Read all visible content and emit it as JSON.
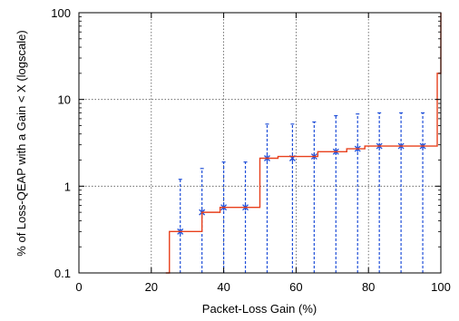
{
  "chart_data": {
    "type": "line",
    "title": "",
    "xlabel": "Packet-Loss Gain (%)",
    "ylabel": "% of Loss-QEAP with a Gain < X   (logscale)",
    "xlim": [
      0,
      100
    ],
    "ylim": [
      0.1,
      100
    ],
    "yscale": "log",
    "grid": true,
    "legend": "none",
    "x_ticks": [
      0,
      20,
      40,
      60,
      80,
      100
    ],
    "x_tick_labels": [
      "0",
      "20",
      "40",
      "60",
      "80",
      "100"
    ],
    "y_ticks": [
      0.1,
      1,
      10,
      100
    ],
    "y_tick_labels": [
      "0.1",
      "1",
      "10",
      "100"
    ],
    "colors": {
      "cdf": "#e8401c",
      "errorbar": "#1f4fd8",
      "grid": "#555555"
    },
    "series": [
      {
        "kind": "step",
        "x": [
          24,
          25,
          32,
          34,
          37,
          39,
          46,
          47,
          50,
          51,
          55,
          62,
          66,
          68,
          74,
          79,
          84,
          98,
          99,
          100
        ],
        "values": [
          0.1,
          0.3,
          0.3,
          0.5,
          0.5,
          0.57,
          0.57,
          0.57,
          2.1,
          2.1,
          2.2,
          2.2,
          2.5,
          2.5,
          2.7,
          2.9,
          2.9,
          2.9,
          20,
          100
        ]
      },
      {
        "kind": "errorbar",
        "x": [
          28,
          34,
          40,
          46,
          52,
          59,
          65,
          71,
          77,
          83,
          89,
          95
        ],
        "values": [
          0.3,
          0.5,
          0.57,
          0.57,
          2.1,
          2.1,
          2.2,
          2.5,
          2.7,
          2.9,
          2.9,
          2.9
        ],
        "upper": [
          1.2,
          1.6,
          1.9,
          1.9,
          5.2,
          5.2,
          5.5,
          6.5,
          6.8,
          7.0,
          7.0,
          7.0
        ],
        "lower": [
          0.1,
          0.1,
          0.1,
          0.1,
          0.1,
          0.1,
          0.1,
          0.1,
          0.1,
          0.1,
          0.1,
          0.1
        ]
      }
    ]
  }
}
